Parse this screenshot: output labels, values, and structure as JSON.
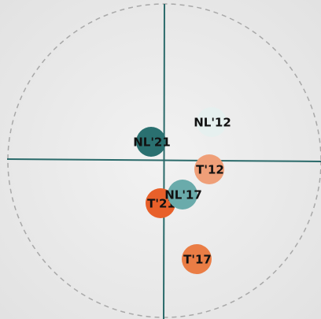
{
  "chart_data": {
    "type": "scatter",
    "labels": [
      "NL'12",
      "NL'21",
      "T'12",
      "T'21",
      "NL'17",
      "T'17"
    ],
    "x": [
      0.3,
      -0.085,
      0.285,
      -0.025,
      0.115,
      0.205
    ],
    "y": [
      0.24,
      0.115,
      -0.06,
      -0.275,
      -0.22,
      -0.63
    ],
    "colors": [
      "#e6f0ef",
      "#2a7070",
      "#ef9f78",
      "#e8602a",
      "#6aabab",
      "#ea7d45"
    ],
    "xlim": [
      -1,
      1
    ],
    "ylim": [
      -1,
      1
    ]
  }
}
